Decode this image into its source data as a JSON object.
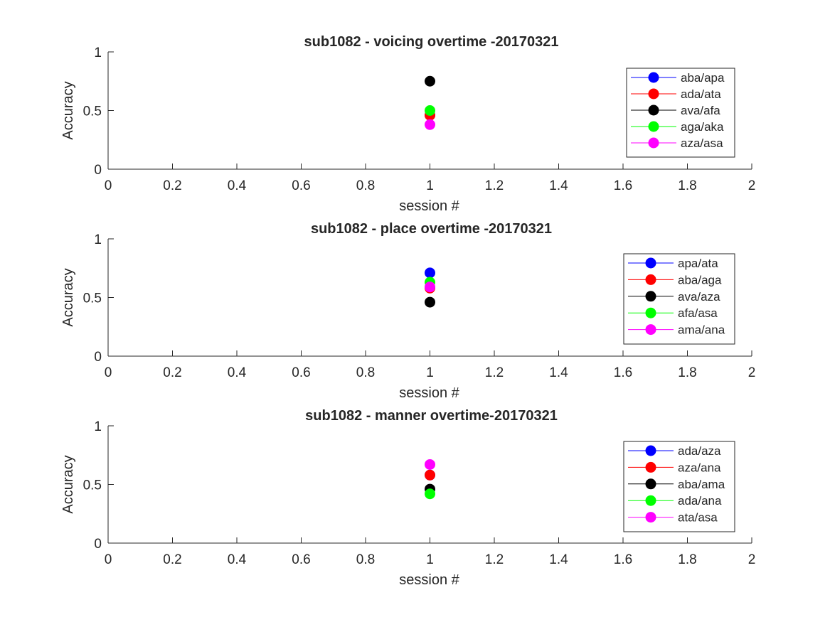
{
  "chart_data": [
    {
      "type": "scatter",
      "title": "sub1082 - voicing overtime -20170321",
      "xlabel": "session #",
      "ylabel": "Accuracy",
      "xlim": [
        0,
        2
      ],
      "ylim": [
        0,
        1
      ],
      "xticks": [
        "0",
        "0.2",
        "0.4",
        "0.6",
        "0.8",
        "1",
        "1.2",
        "1.4",
        "1.6",
        "1.8",
        "2"
      ],
      "yticks": [
        "0",
        "0.5",
        "1"
      ],
      "legend_position": "top-right",
      "series": [
        {
          "name": "aba/apa",
          "color": "#0000ff",
          "x": [
            1
          ],
          "y": [
            0.46
          ]
        },
        {
          "name": "ada/ata",
          "color": "#ff0000",
          "x": [
            1
          ],
          "y": [
            0.46
          ]
        },
        {
          "name": "ava/afa",
          "color": "#000000",
          "x": [
            1
          ],
          "y": [
            0.75
          ]
        },
        {
          "name": "aga/aka",
          "color": "#00ff00",
          "x": [
            1
          ],
          "y": [
            0.5
          ]
        },
        {
          "name": "aza/asa",
          "color": "#ff00ff",
          "x": [
            1
          ],
          "y": [
            0.38
          ]
        }
      ]
    },
    {
      "type": "scatter",
      "title": "sub1082 - place overtime -20170321",
      "xlabel": "session #",
      "ylabel": "Accuracy",
      "xlim": [
        0,
        2
      ],
      "ylim": [
        0,
        1
      ],
      "xticks": [
        "0",
        "0.2",
        "0.4",
        "0.6",
        "0.8",
        "1",
        "1.2",
        "1.4",
        "1.6",
        "1.8",
        "2"
      ],
      "yticks": [
        "0",
        "0.5",
        "1"
      ],
      "legend_position": "top-right",
      "series": [
        {
          "name": "apa/ata",
          "color": "#0000ff",
          "x": [
            1
          ],
          "y": [
            0.71
          ]
        },
        {
          "name": "aba/aga",
          "color": "#ff0000",
          "x": [
            1
          ],
          "y": [
            0.58
          ]
        },
        {
          "name": "ava/aza",
          "color": "#000000",
          "x": [
            1
          ],
          "y": [
            0.46
          ]
        },
        {
          "name": "afa/asa",
          "color": "#00ff00",
          "x": [
            1
          ],
          "y": [
            0.63
          ]
        },
        {
          "name": "ama/ana",
          "color": "#ff00ff",
          "x": [
            1
          ],
          "y": [
            0.59
          ]
        }
      ]
    },
    {
      "type": "scatter",
      "title": "sub1082 - manner overtime-20170321",
      "xlabel": "session #",
      "ylabel": "Accuracy",
      "xlim": [
        0,
        2
      ],
      "ylim": [
        0,
        1
      ],
      "xticks": [
        "0",
        "0.2",
        "0.4",
        "0.6",
        "0.8",
        "1",
        "1.2",
        "1.4",
        "1.6",
        "1.8",
        "2"
      ],
      "yticks": [
        "0",
        "0.5",
        "1"
      ],
      "legend_position": "top-right",
      "series": [
        {
          "name": "ada/aza",
          "color": "#0000ff",
          "x": [
            1
          ],
          "y": [
            0.58
          ]
        },
        {
          "name": "aza/ana",
          "color": "#ff0000",
          "x": [
            1
          ],
          "y": [
            0.58
          ]
        },
        {
          "name": "aba/ama",
          "color": "#000000",
          "x": [
            1
          ],
          "y": [
            0.46
          ]
        },
        {
          "name": "ada/ana",
          "color": "#00ff00",
          "x": [
            1
          ],
          "y": [
            0.42
          ]
        },
        {
          "name": "ata/asa",
          "color": "#ff00ff",
          "x": [
            1
          ],
          "y": [
            0.67
          ]
        }
      ]
    }
  ]
}
